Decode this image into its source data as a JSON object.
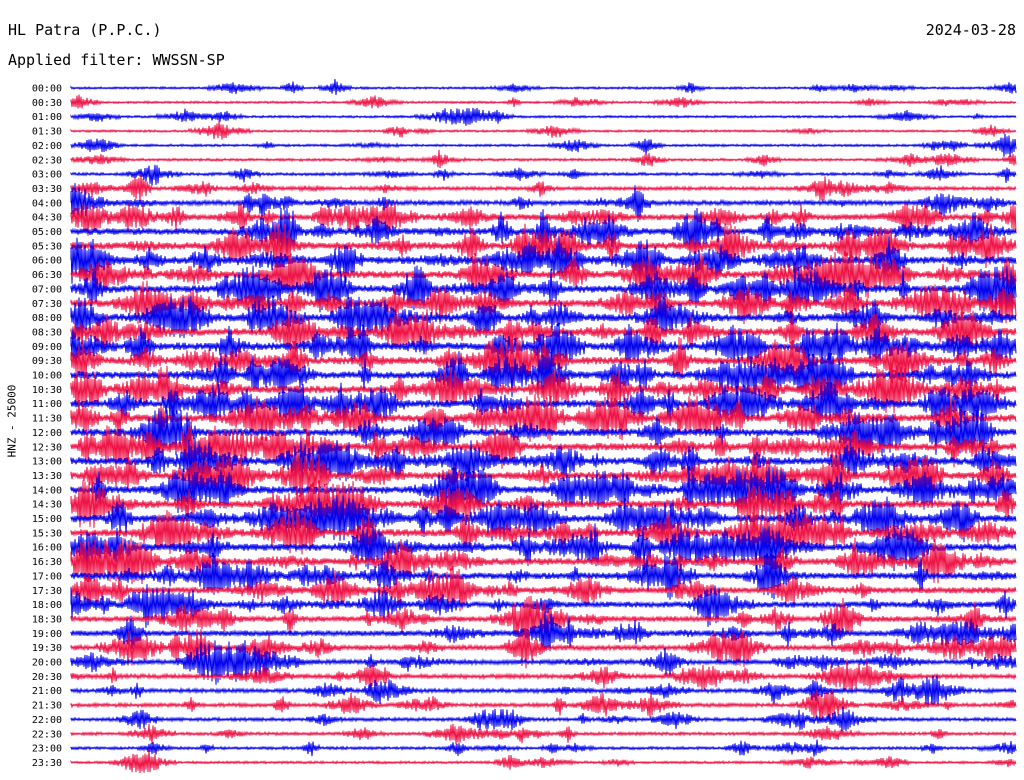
{
  "header": {
    "station": "HL Patra (P.P.C.)",
    "date": "2024-03-28",
    "filter": "Applied filter: WWSSN-SP"
  },
  "chart_data": {
    "type": "line",
    "title": "HL Patra (P.P.C.)",
    "subtitle": "Applied filter: WWSSN-SP",
    "date": "2024-03-28",
    "ylabel": "HNZ - 25000",
    "xlabel": "",
    "row_interval_minutes": 30,
    "row_labels": [
      "00:00",
      "00:30",
      "01:00",
      "01:30",
      "02:00",
      "02:30",
      "03:00",
      "03:30",
      "04:00",
      "04:30",
      "05:00",
      "05:30",
      "06:00",
      "06:30",
      "07:00",
      "07:30",
      "08:00",
      "08:30",
      "09:00",
      "09:30",
      "10:00",
      "10:30",
      "11:00",
      "11:30",
      "12:00",
      "12:30",
      "13:00",
      "13:30",
      "14:00",
      "14:30",
      "15:00",
      "15:30",
      "16:00",
      "16:30",
      "17:00",
      "17:30",
      "18:00",
      "18:30",
      "19:00",
      "19:30",
      "20:00",
      "20:30",
      "21:00",
      "21:30",
      "22:00",
      "22:30",
      "23:00",
      "23:30"
    ],
    "series_colors": [
      "#0000ee",
      "#ee1144"
    ],
    "relative_activity": [
      0.15,
      0.15,
      0.15,
      0.15,
      0.18,
      0.2,
      0.25,
      0.35,
      0.55,
      0.75,
      0.9,
      1.0,
      1.0,
      1.0,
      1.0,
      1.0,
      1.0,
      1.0,
      1.0,
      1.0,
      1.0,
      1.0,
      1.0,
      1.0,
      1.0,
      1.0,
      1.0,
      1.0,
      1.0,
      1.0,
      1.0,
      1.0,
      0.95,
      0.9,
      0.85,
      0.8,
      0.75,
      0.7,
      0.68,
      0.62,
      0.55,
      0.5,
      0.45,
      0.4,
      0.35,
      0.3,
      0.25,
      0.2
    ],
    "grid": false,
    "legend": "none"
  }
}
